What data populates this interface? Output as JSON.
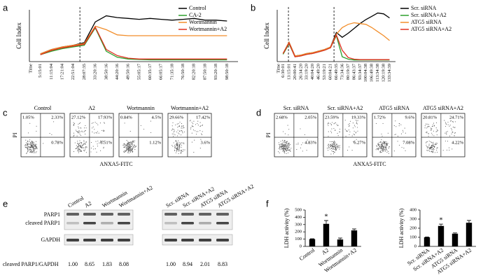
{
  "panel_labels": [
    "a",
    "b",
    "c",
    "d",
    "e",
    "f"
  ],
  "chart_data": [
    {
      "type": "line",
      "y_label": "Cell Index",
      "x_label": "Time",
      "categories": [
        "5:15:01",
        "11:15:04",
        "17:21:04",
        "22:51:04",
        "28:07:35",
        "33:20:16",
        "38:50:16",
        "44:20:16",
        "49:50:16",
        "55:05:17",
        "60:35:17",
        "66:05:17",
        "71:35:18",
        "76:50:18",
        "82:20:18",
        "87:50:18",
        "93:20:18",
        "98:50:18"
      ],
      "ylim": [
        0,
        3
      ],
      "series": [
        {
          "name": "Control",
          "color": "#000000",
          "values": [
            0.45,
            0.7,
            0.85,
            0.95,
            1.1,
            2.3,
            2.65,
            2.55,
            2.5,
            2.45,
            2.5,
            2.45,
            2.4,
            2.45,
            2.5,
            2.4,
            2.4,
            2.35
          ]
        },
        {
          "name": "CA-2",
          "color": "#2ca02c",
          "values": [
            0.4,
            0.6,
            0.75,
            0.85,
            0.95,
            1.95,
            0.6,
            0.25,
            0.15,
            0.12,
            0.1,
            0.1,
            0.1,
            0.1,
            0.1,
            0.1,
            0.1,
            0.1
          ]
        },
        {
          "name": "Wortmannin",
          "color": "#f28e2b",
          "values": [
            0.45,
            0.7,
            0.85,
            0.95,
            1.05,
            2.05,
            1.85,
            1.55,
            1.5,
            1.5,
            1.5,
            1.5,
            1.5,
            1.5,
            1.5,
            1.5,
            1.5,
            1.5
          ]
        },
        {
          "name": "Wortmannin+A2",
          "color": "#e03020",
          "values": [
            0.4,
            0.65,
            0.8,
            0.9,
            1.0,
            2.0,
            0.7,
            0.35,
            0.2,
            0.15,
            0.15,
            0.15,
            0.15,
            0.15,
            0.15,
            0.15,
            0.15,
            0.15
          ]
        }
      ]
    },
    {
      "type": "line",
      "y_label": "Cell Index",
      "x_label": "Time",
      "categories": [
        "6:30:01",
        "13:15:01",
        "20:00:41",
        "26:34:20",
        "33:19:20",
        "40:04:20",
        "46:49:20",
        "53:19:21",
        "60:04:21",
        "66:49:35",
        "73:34:36",
        "80:19:37",
        "86:43:37",
        "93:34:37",
        "100:04:38",
        "106:49:38",
        "113:34:38",
        "120:19:38",
        "133:34:39"
      ],
      "ylim": [
        0,
        3.2
      ],
      "series": [
        {
          "name": "Scr. siRNA",
          "color": "#000000",
          "values": [
            0.5,
            1.2,
            0.35,
            0.4,
            0.5,
            0.55,
            0.65,
            0.75,
            0.9,
            1.8,
            1.5,
            1.75,
            2.05,
            2.35,
            2.6,
            2.8,
            3.0,
            2.95,
            2.7
          ]
        },
        {
          "name": "Scr. siRNA+A2",
          "color": "#2ca02c",
          "values": [
            0.45,
            1.1,
            0.3,
            0.35,
            0.45,
            0.5,
            0.6,
            0.7,
            0.85,
            1.6,
            0.3,
            0.15,
            0.1,
            0.1,
            0.1,
            0.1,
            0.1,
            0.1,
            0.1
          ]
        },
        {
          "name": "ATG5 siRNA",
          "color": "#f28e2b",
          "values": [
            0.5,
            1.2,
            0.35,
            0.4,
            0.5,
            0.55,
            0.65,
            0.75,
            0.9,
            1.7,
            2.1,
            2.3,
            2.4,
            2.35,
            2.3,
            2.1,
            1.85,
            1.6,
            1.3
          ]
        },
        {
          "name": "ATG5 siRNA+A2",
          "color": "#e03020",
          "values": [
            0.5,
            1.15,
            0.3,
            0.35,
            0.45,
            0.5,
            0.6,
            0.7,
            0.85,
            1.65,
            0.7,
            0.25,
            0.15,
            0.12,
            0.12,
            0.12,
            0.12,
            0.12,
            0.12
          ]
        }
      ]
    },
    {
      "type": "bar",
      "y_label": "LDH activity (%)",
      "categories": [
        "Control",
        "A2",
        "Wortmannin",
        "Wortmannin+A2"
      ],
      "values": [
        100,
        310,
        95,
        220
      ],
      "errors": [
        5,
        45,
        20,
        20
      ],
      "color": "#000000",
      "ylim": [
        0,
        500
      ],
      "yticks": [
        0,
        100,
        200,
        300,
        400,
        500
      ],
      "annotation": {
        "text": "*",
        "category": "A2"
      }
    },
    {
      "type": "bar",
      "y_label": "LDH activity (%)",
      "categories": [
        "Scr. siRNA",
        "Scr. siRNA+A2",
        "ATG5 siRNA",
        "ATG5 siRNA+A2"
      ],
      "values": [
        100,
        225,
        140,
        260
      ],
      "errors": [
        5,
        20,
        8,
        25
      ],
      "color": "#000000",
      "ylim": [
        0,
        400
      ],
      "yticks": [
        0,
        100,
        200,
        300,
        400
      ],
      "annotation": {
        "text": "*",
        "category": "Scr. siRNA+A2"
      }
    }
  ],
  "flow_panels": [
    {
      "y_label": "PI",
      "x_label": "ANXA5-FITC",
      "plots": [
        {
          "title": "Control",
          "upper_left": "1.05%",
          "upper_right": "2.33%",
          "lower_right": "0.78%"
        },
        {
          "title": "A2",
          "upper_left": "27.12%",
          "upper_right": "17.93%",
          "lower_right": "6.51%"
        },
        {
          "title": "Wortmannin",
          "upper_left": "0.84%",
          "upper_right": "4.5%",
          "lower_right": "1.12%"
        },
        {
          "title": "Wortmannin+A2",
          "upper_left": "29.66%",
          "upper_right": "17.42%",
          "lower_right": "3.6%"
        }
      ]
    },
    {
      "y_label": "PI",
      "x_label": "ANXA5-FITC",
      "plots": [
        {
          "title": "Scr. siRNA",
          "upper_left": "2.68%",
          "upper_right": "2.05%",
          "lower_right": "4.83%"
        },
        {
          "title": "Scr. siRNA+A2",
          "upper_left": "23.59%",
          "upper_right": "19.33%",
          "lower_right": "6.27%"
        },
        {
          "title": "ATG5 siRNA",
          "upper_left": "1.72%",
          "upper_right": "9.6%",
          "lower_right": "7.08%"
        },
        {
          "title": "ATG5 siRNA+A2",
          "upper_left": "20.81%",
          "upper_right": "24.71%",
          "lower_right": "4.22%"
        }
      ]
    }
  ],
  "blot": {
    "rows": [
      "PARP1",
      "cleaved PARP1",
      "GAPDH"
    ],
    "ratio_label": "cleaved PARP1/GAPDH",
    "groups": [
      {
        "lanes": [
          "Control",
          "A2",
          "Wortmannin",
          "Wortmannin+A2"
        ],
        "ratios": [
          "1.00",
          "8.65",
          "1.83",
          "8.08"
        ]
      },
      {
        "lanes": [
          "Scr. siRNA",
          "Scr. siRNA+A2",
          "ATG5 siRNA",
          "ATG5 siRNA+A2"
        ],
        "ratios": [
          "1.00",
          "8.94",
          "2.01",
          "8.83"
        ]
      }
    ]
  }
}
